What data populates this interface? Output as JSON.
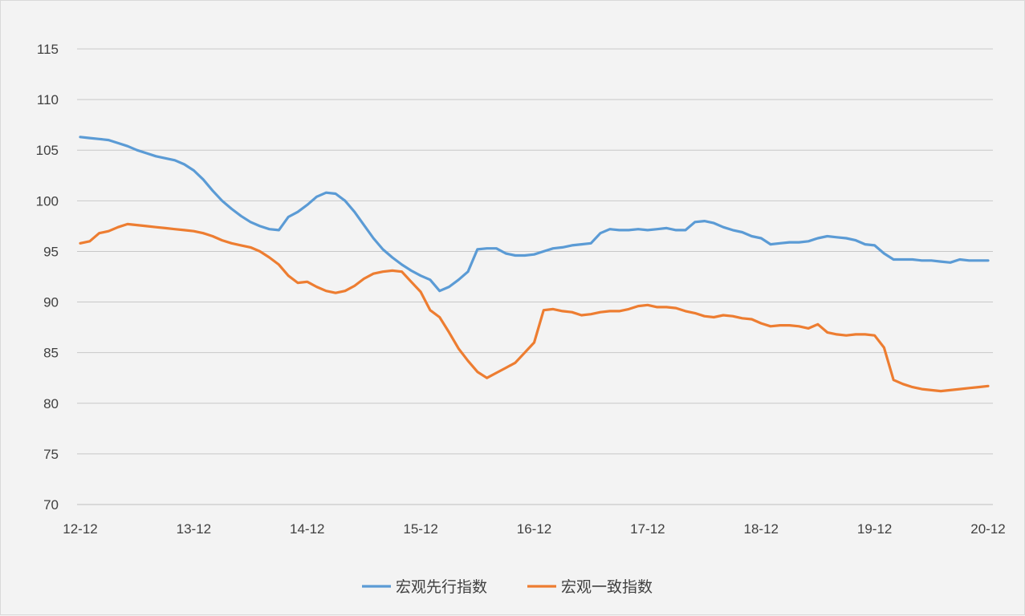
{
  "chart_data": {
    "type": "line",
    "title": "",
    "xlabel": "",
    "ylabel": "",
    "ylim": [
      70,
      115
    ],
    "yticks": [
      70,
      75,
      80,
      85,
      90,
      95,
      100,
      105,
      110,
      115
    ],
    "xticks": [
      "12-12",
      "13-12",
      "14-12",
      "15-12",
      "16-12",
      "17-12",
      "18-12",
      "19-12",
      "20-12"
    ],
    "grid": "horizontal",
    "legend_position": "bottom",
    "series": [
      {
        "name": "宏观先行指数",
        "color": "#5b9bd5",
        "values": [
          106.3,
          106.2,
          106.1,
          106.0,
          105.7,
          105.4,
          105.0,
          104.7,
          104.4,
          104.2,
          104.0,
          103.6,
          103.0,
          102.1,
          101.0,
          100.0,
          99.2,
          98.5,
          97.9,
          97.5,
          97.2,
          97.1,
          98.4,
          98.9,
          99.6,
          100.4,
          100.8,
          100.7,
          100.0,
          98.9,
          97.6,
          96.3,
          95.2,
          94.4,
          93.7,
          93.1,
          92.6,
          92.2,
          91.1,
          91.5,
          92.2,
          93.0,
          95.2,
          95.3,
          95.3,
          94.8,
          94.6,
          94.6,
          94.7,
          95.0,
          95.3,
          95.4,
          95.6,
          95.7,
          95.8,
          96.8,
          97.2,
          97.1,
          97.1,
          97.2,
          97.1,
          97.2,
          97.3,
          97.1,
          97.1,
          97.9,
          98.0,
          97.8,
          97.4,
          97.1,
          96.9,
          96.5,
          96.3,
          95.7,
          95.8,
          95.9,
          95.9,
          96.0,
          96.3,
          96.5,
          96.4,
          96.3,
          96.1,
          95.7,
          95.6,
          94.8,
          94.2,
          94.2,
          94.2,
          94.1,
          94.1,
          94.0,
          93.9,
          94.2,
          94.1,
          94.1,
          94.1
        ]
      },
      {
        "name": "宏观一致指数",
        "color": "#ed7d31",
        "values": [
          95.8,
          96.0,
          96.8,
          97.0,
          97.4,
          97.7,
          97.6,
          97.5,
          97.4,
          97.3,
          97.2,
          97.1,
          97.0,
          96.8,
          96.5,
          96.1,
          95.8,
          95.6,
          95.4,
          95.0,
          94.4,
          93.7,
          92.6,
          91.9,
          92.0,
          91.5,
          91.1,
          90.9,
          91.1,
          91.6,
          92.3,
          92.8,
          93.0,
          93.1,
          93.0,
          92.0,
          91.0,
          89.2,
          88.5,
          87.0,
          85.4,
          84.2,
          83.1,
          82.5,
          83.0,
          83.5,
          84.0,
          85.0,
          86.0,
          89.2,
          89.3,
          89.1,
          89.0,
          88.7,
          88.8,
          89.0,
          89.1,
          89.1,
          89.3,
          89.6,
          89.7,
          89.5,
          89.5,
          89.4,
          89.1,
          88.9,
          88.6,
          88.5,
          88.7,
          88.6,
          88.4,
          88.3,
          87.9,
          87.6,
          87.7,
          87.7,
          87.6,
          87.4,
          87.8,
          87.0,
          86.8,
          86.7,
          86.8,
          86.8,
          86.7,
          85.5,
          82.3,
          81.9,
          81.6,
          81.4,
          81.3,
          81.2,
          81.3,
          81.4,
          81.5,
          81.6,
          81.7
        ]
      }
    ]
  }
}
